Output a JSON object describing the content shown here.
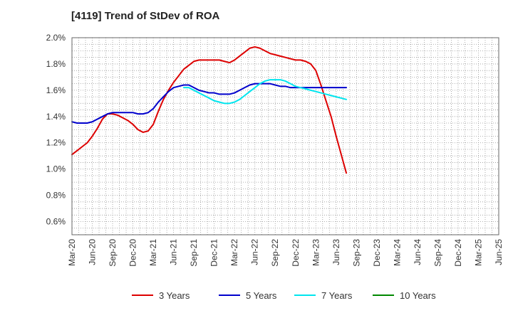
{
  "chart_data": {
    "type": "line",
    "title": "[4119]  Trend of StDev of ROA",
    "xlabel": "",
    "ylabel": "",
    "x_ticks": [
      "Mar-20",
      "Jun-20",
      "Sep-20",
      "Dec-20",
      "Mar-21",
      "Jun-21",
      "Sep-21",
      "Dec-21",
      "Mar-22",
      "Jun-22",
      "Sep-22",
      "Dec-22",
      "Mar-23",
      "Jun-23",
      "Sep-23",
      "Dec-23",
      "Mar-24",
      "Jun-24",
      "Sep-24",
      "Dec-24",
      "Mar-25",
      "Jun-25"
    ],
    "y_ticks": [
      "0.6%",
      "0.8%",
      "1.0%",
      "1.2%",
      "1.4%",
      "1.6%",
      "1.8%",
      "2.0%"
    ],
    "ylim": [
      0.5,
      2.0
    ],
    "grid": true,
    "legend_position": "bottom",
    "series": [
      {
        "name": "3 Years",
        "color": "#dd0000",
        "values": [
          1.11,
          1.14,
          1.17,
          1.2,
          1.25,
          1.31,
          1.38,
          1.42,
          1.42,
          1.41,
          1.39,
          1.37,
          1.34,
          1.3,
          1.28,
          1.29,
          1.34,
          1.44,
          1.53,
          1.6,
          1.66,
          1.71,
          1.76,
          1.79,
          1.82,
          1.83,
          1.83,
          1.83,
          1.83,
          1.83,
          1.82,
          1.81,
          1.83,
          1.86,
          1.89,
          1.92,
          1.93,
          1.92,
          1.9,
          1.88,
          1.87,
          1.86,
          1.85,
          1.84,
          1.83,
          1.83,
          1.82,
          1.8,
          1.75,
          1.64,
          1.52,
          1.4,
          1.25,
          1.11,
          0.97
        ]
      },
      {
        "name": "5 Years",
        "color": "#0000cc",
        "values": [
          1.36,
          1.35,
          1.35,
          1.35,
          1.36,
          1.38,
          1.4,
          1.42,
          1.43,
          1.43,
          1.43,
          1.43,
          1.43,
          1.42,
          1.42,
          1.43,
          1.46,
          1.51,
          1.55,
          1.59,
          1.62,
          1.63,
          1.64,
          1.64,
          1.62,
          1.6,
          1.59,
          1.58,
          1.58,
          1.57,
          1.57,
          1.57,
          1.58,
          1.6,
          1.62,
          1.64,
          1.65,
          1.65,
          1.65,
          1.65,
          1.64,
          1.63,
          1.63,
          1.62,
          1.62,
          1.62,
          1.62,
          1.62,
          1.62,
          1.62,
          1.62,
          1.62,
          1.62,
          1.62,
          1.62
        ]
      },
      {
        "name": "7 Years",
        "color": "#00e5ee",
        "values": [
          null,
          null,
          null,
          null,
          null,
          null,
          null,
          null,
          null,
          null,
          null,
          null,
          null,
          null,
          null,
          null,
          null,
          null,
          null,
          null,
          null,
          null,
          1.62,
          1.62,
          1.6,
          1.58,
          1.56,
          1.54,
          1.52,
          1.51,
          1.5,
          1.5,
          1.51,
          1.53,
          1.56,
          1.59,
          1.62,
          1.65,
          1.67,
          1.68,
          1.68,
          1.68,
          1.67,
          1.65,
          1.63,
          1.62,
          1.61,
          1.6,
          1.59,
          1.58,
          1.57,
          1.56,
          1.55,
          1.54,
          1.53
        ]
      },
      {
        "name": "10 Years",
        "color": "#008800",
        "values": []
      }
    ]
  }
}
